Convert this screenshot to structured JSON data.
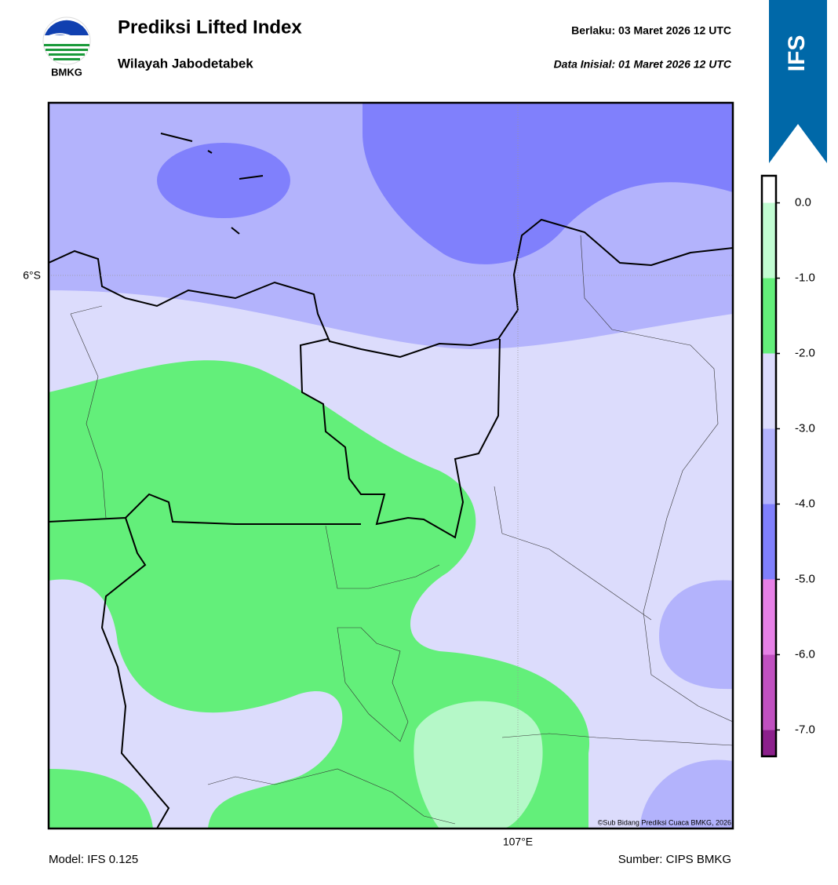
{
  "header": {
    "logo_text": "BMKG",
    "title": "Prediksi Lifted Index",
    "subtitle": "Wilayah Jabodetabek",
    "valid": "Berlaku:  03 Maret 2026 12 UTC",
    "init": "Data Inisial:  01 Maret 2026 12 UTC",
    "badge": "IFS"
  },
  "map": {
    "lat_label": "6°S",
    "lon_label": "107°E",
    "credit": "©Sub Bidang Prediksi Cuaca BMKG, 2026"
  },
  "colorbar": {
    "lim": [
      -7.35,
      0.36
    ],
    "ticks": [
      {
        "value": 0,
        "label": "0.0"
      },
      {
        "value": -1,
        "label": "-1.0"
      },
      {
        "value": -2,
        "label": "-2.0"
      },
      {
        "value": -3,
        "label": "-3.0"
      },
      {
        "value": -4,
        "label": "-4.0"
      },
      {
        "value": -5,
        "label": "-5.0"
      },
      {
        "value": -6,
        "label": "-6.0"
      },
      {
        "value": -7,
        "label": "-7.0"
      }
    ],
    "bands": [
      {
        "from": 0,
        "to": 0.36,
        "color": "#ffffff"
      },
      {
        "from": -1,
        "to": 0,
        "color": "#c2fcd2"
      },
      {
        "from": -2,
        "to": -1,
        "color": "#63ef7a"
      },
      {
        "from": -3,
        "to": -2,
        "color": "#dcdcfc"
      },
      {
        "from": -4,
        "to": -3,
        "color": "#b3b3fc"
      },
      {
        "from": -5,
        "to": -4,
        "color": "#8080fc"
      },
      {
        "from": -6,
        "to": -5,
        "color": "#e680e6"
      },
      {
        "from": -7,
        "to": -6,
        "color": "#c050c0"
      },
      {
        "from": -7.35,
        "to": -7,
        "color": "#8c208c"
      }
    ]
  },
  "footer": {
    "model": "Model: IFS 0.125",
    "source": "Sumber: CIPS BMKG"
  }
}
